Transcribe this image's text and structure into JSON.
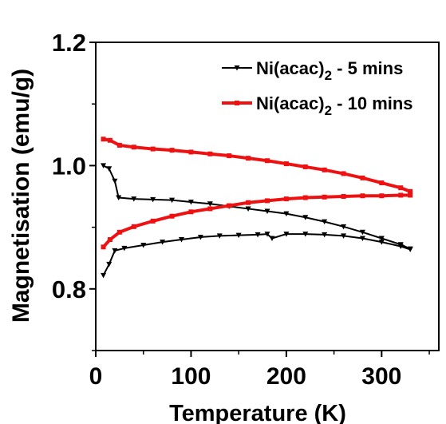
{
  "chart_data": {
    "type": "line",
    "xlabel": "Temperature (K)",
    "ylabel": "Magnetisation (emu/g)",
    "xlim": [
      0,
      360
    ],
    "ylim": [
      0.7,
      1.2
    ],
    "xticks": [
      "0",
      "100",
      "200",
      "300"
    ],
    "yticks": [
      "0.8",
      "1.0",
      "1.2"
    ],
    "grid": false,
    "legend_position": "top-right",
    "series": [
      {
        "name_parts": [
          "Ni(acac)",
          "2",
          " - 5 mins"
        ],
        "color": "#000000",
        "marker": "triangle-down",
        "segments": [
          {
            "x": [
              8,
              14,
              20,
              24,
              40,
              60,
              80,
              100,
              120,
              140,
              160,
              180,
              200,
              220,
              240,
              260,
              280,
              300,
              320,
              330
            ],
            "y": [
              1.0,
              0.995,
              0.975,
              0.948,
              0.946,
              0.945,
              0.944,
              0.941,
              0.938,
              0.934,
              0.93,
              0.926,
              0.922,
              0.916,
              0.909,
              0.901,
              0.892,
              0.882,
              0.872,
              0.865
            ]
          },
          {
            "x": [
              8,
              14,
              20,
              30,
              50,
              70,
              90,
              110,
              130,
              150,
              170,
              180,
              185,
              200,
              220,
              240,
              260,
              280,
              300,
              320,
              330
            ],
            "y": [
              0.822,
              0.84,
              0.862,
              0.866,
              0.871,
              0.876,
              0.88,
              0.884,
              0.886,
              0.887,
              0.888,
              0.889,
              0.882,
              0.889,
              0.889,
              0.888,
              0.886,
              0.882,
              0.876,
              0.869,
              0.864
            ]
          }
        ]
      },
      {
        "name_parts": [
          "Ni(acac)",
          "2",
          " - 10 mins"
        ],
        "color": "#ee1111",
        "marker": "square",
        "segments": [
          {
            "x": [
              8,
              15,
              25,
              40,
              60,
              80,
              100,
              120,
              140,
              160,
              180,
              200,
              220,
              240,
              260,
              280,
              300,
              320,
              330
            ],
            "y": [
              1.043,
              1.041,
              1.033,
              1.03,
              1.027,
              1.025,
              1.022,
              1.019,
              1.016,
              1.012,
              1.008,
              1.003,
              0.998,
              0.993,
              0.987,
              0.98,
              0.972,
              0.964,
              0.958
            ]
          },
          {
            "x": [
              8,
              15,
              25,
              40,
              60,
              80,
              100,
              120,
              140,
              160,
              180,
              200,
              220,
              240,
              260,
              280,
              300,
              320,
              330
            ],
            "y": [
              0.868,
              0.88,
              0.892,
              0.901,
              0.91,
              0.918,
              0.925,
              0.93,
              0.935,
              0.94,
              0.943,
              0.946,
              0.948,
              0.949,
              0.95,
              0.951,
              0.951,
              0.952,
              0.952
            ]
          }
        ]
      }
    ]
  }
}
